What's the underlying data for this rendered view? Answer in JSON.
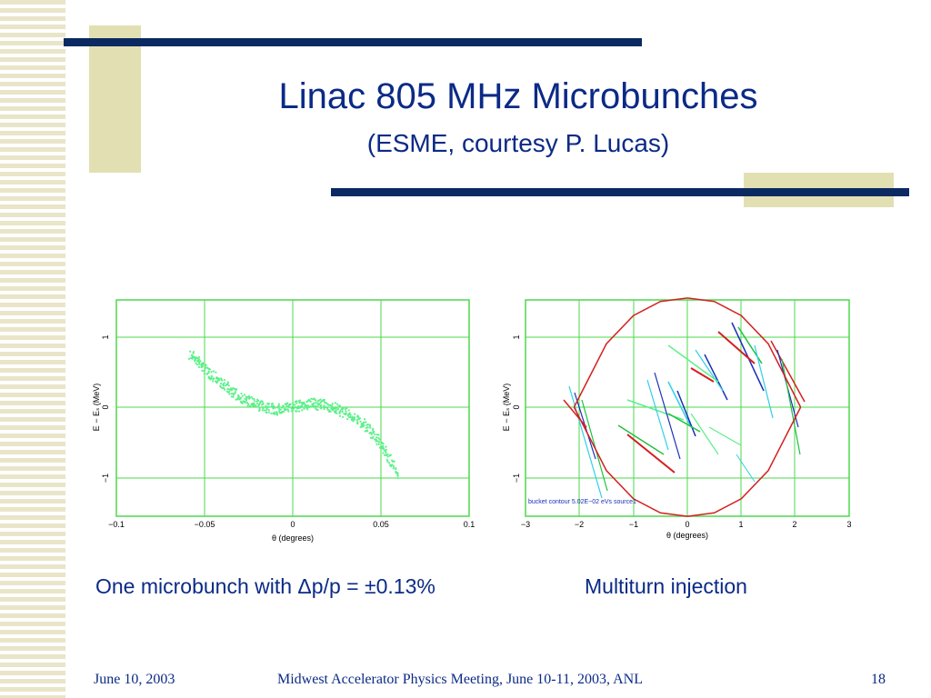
{
  "slide": {
    "title": "Linac 805 MHz Microbunches",
    "subtitle": "(ESME, courtesy P. Lucas)",
    "caption_left": "One microbunch with Δp/p = ±0.13%",
    "caption_right": "Multiturn injection",
    "footer_date": "June 10, 2003",
    "footer_center": "Midwest Accelerator Physics Meeting, June 10-11, 2003, ANL",
    "footer_page": "18"
  },
  "colors": {
    "navy": "#0b2a62",
    "tan": "#e2dfb3",
    "plot_frame": "#4dd94d",
    "particles": "#5cf08a",
    "bucket": "#d42020"
  },
  "chart_data": [
    {
      "type": "scatter",
      "xlabel": "θ (degrees)",
      "ylabel": "E − Eₛ (MeV)",
      "xlim": [
        -0.1,
        0.1
      ],
      "ylim": [
        -1.6,
        1.6
      ],
      "x_ticks": [
        "−0.1",
        "−0.05",
        "0",
        "0.05",
        "0.1"
      ],
      "y_ticks": [
        "1",
        "0",
        "−1"
      ],
      "grid": true,
      "series": [
        {
          "x": [
            -0.058,
            -0.05,
            -0.04,
            -0.03,
            -0.02,
            -0.01,
            0.0,
            0.01,
            0.02,
            0.03,
            0.04,
            0.05,
            0.06
          ],
          "y": [
            0.75,
            0.55,
            0.33,
            0.14,
            0.03,
            -0.04,
            0.0,
            0.05,
            0.02,
            -0.08,
            -0.24,
            -0.52,
            -0.95
          ]
        }
      ]
    },
    {
      "type": "scatter",
      "xlabel": "θ (degrees)",
      "ylabel": "E − Eₛ (MeV)",
      "xlim": [
        -3,
        3
      ],
      "ylim": [
        -1.6,
        1.6
      ],
      "x_ticks": [
        "−3",
        "−2",
        "−1",
        "0",
        "1",
        "2",
        "3"
      ],
      "y_ticks": [
        "1",
        "0",
        "−1"
      ],
      "grid": true,
      "annotation": "bucket contour 5.02E−02 eVs source1",
      "series": [
        {
          "x": [
            -2.1,
            -1.5,
            -1.0,
            -0.5,
            0.0,
            0.5,
            1.0,
            1.5,
            2.1
          ],
          "y": [
            0.0,
            0.9,
            1.3,
            1.5,
            1.55,
            1.5,
            1.3,
            0.9,
            0.0
          ]
        },
        {
          "x": [
            -2.1,
            -1.5,
            -1.0,
            -0.5,
            0.0,
            0.5,
            1.0,
            1.5,
            2.1
          ],
          "y": [
            0.0,
            -0.9,
            -1.3,
            -1.5,
            -1.55,
            -1.5,
            -1.3,
            -0.9,
            0.0
          ]
        }
      ]
    }
  ]
}
